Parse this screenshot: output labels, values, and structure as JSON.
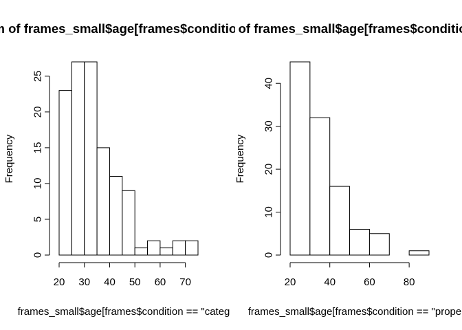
{
  "chart_data": [
    {
      "type": "bar",
      "subtype": "histogram",
      "title": "Histogram of frames_small$age[frames$condition == \"categ",
      "xlabel": "frames_small$age[frames$condition == \"categ",
      "ylabel": "Frequency",
      "bin_edges": [
        20,
        25,
        30,
        35,
        40,
        45,
        50,
        55,
        60,
        65,
        70,
        75
      ],
      "values": [
        23,
        27,
        27,
        15,
        11,
        9,
        1,
        2,
        1,
        2,
        2
      ],
      "xlim": [
        20,
        75
      ],
      "ylim": [
        0,
        27
      ],
      "xticks": [
        20,
        30,
        40,
        50,
        60,
        70
      ],
      "yticks": [
        0,
        5,
        10,
        15,
        20,
        25
      ],
      "grid": false
    },
    {
      "type": "bar",
      "subtype": "histogram",
      "title": "Histogram of frames_small$age[frames$condition == \"prope",
      "xlabel": "frames_small$age[frames$condition == \"prope",
      "ylabel": "Frequency",
      "bin_edges": [
        20,
        30,
        40,
        50,
        60,
        70,
        80,
        90
      ],
      "values": [
        45,
        32,
        16,
        6,
        5,
        0,
        1
      ],
      "xlim": [
        20,
        90
      ],
      "ylim": [
        0,
        45
      ],
      "xticks": [
        20,
        40,
        60,
        80
      ],
      "yticks": [
        0,
        10,
        20,
        30,
        40
      ],
      "grid": false
    }
  ]
}
